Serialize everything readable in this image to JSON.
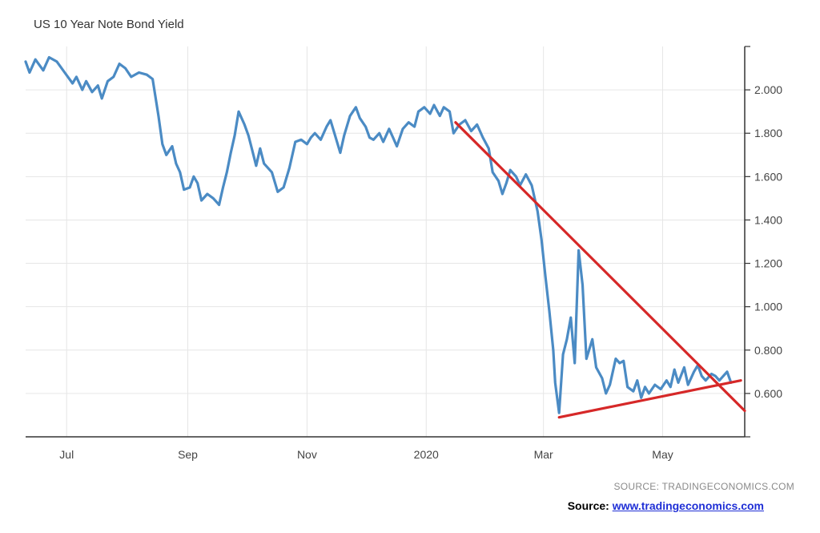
{
  "chart_data": {
    "type": "line",
    "title": "US 10 Year Note Bond Yield",
    "xlabel": "",
    "ylabel": "",
    "x_range": [
      "2019-06-10",
      "2020-06-12"
    ],
    "ylim": [
      0.4,
      2.2
    ],
    "y_ticks": [
      "0.600",
      "0.800",
      "1.000",
      "1.200",
      "1.400",
      "1.600",
      "1.800",
      "2.000"
    ],
    "x_ticks": [
      {
        "label": "Jul",
        "date": "2019-07-01"
      },
      {
        "label": "Sep",
        "date": "2019-09-01"
      },
      {
        "label": "Nov",
        "date": "2019-11-01"
      },
      {
        "label": "2020",
        "date": "2020-01-01"
      },
      {
        "label": "Mar",
        "date": "2020-03-01"
      },
      {
        "label": "May",
        "date": "2020-05-01"
      }
    ],
    "grid": true,
    "line_color": "#4b8bc4",
    "series": [
      {
        "points": [
          [
            "2019-06-10",
            2.13
          ],
          [
            "2019-06-12",
            2.08
          ],
          [
            "2019-06-15",
            2.14
          ],
          [
            "2019-06-19",
            2.09
          ],
          [
            "2019-06-22",
            2.15
          ],
          [
            "2019-06-26",
            2.13
          ],
          [
            "2019-06-30",
            2.08
          ],
          [
            "2019-07-04",
            2.03
          ],
          [
            "2019-07-06",
            2.06
          ],
          [
            "2019-07-09",
            2.0
          ],
          [
            "2019-07-11",
            2.04
          ],
          [
            "2019-07-14",
            1.99
          ],
          [
            "2019-07-17",
            2.02
          ],
          [
            "2019-07-19",
            1.96
          ],
          [
            "2019-07-22",
            2.04
          ],
          [
            "2019-07-25",
            2.06
          ],
          [
            "2019-07-28",
            2.12
          ],
          [
            "2019-07-31",
            2.1
          ],
          [
            "2019-08-03",
            2.06
          ],
          [
            "2019-08-07",
            2.08
          ],
          [
            "2019-08-11",
            2.07
          ],
          [
            "2019-08-14",
            2.05
          ],
          [
            "2019-08-17",
            1.88
          ],
          [
            "2019-08-19",
            1.75
          ],
          [
            "2019-08-21",
            1.7
          ],
          [
            "2019-08-24",
            1.74
          ],
          [
            "2019-08-26",
            1.66
          ],
          [
            "2019-08-28",
            1.62
          ],
          [
            "2019-08-30",
            1.54
          ],
          [
            "2019-09-02",
            1.55
          ],
          [
            "2019-09-04",
            1.6
          ],
          [
            "2019-09-06",
            1.57
          ],
          [
            "2019-09-08",
            1.49
          ],
          [
            "2019-09-11",
            1.52
          ],
          [
            "2019-09-14",
            1.5
          ],
          [
            "2019-09-17",
            1.47
          ],
          [
            "2019-09-19",
            1.55
          ],
          [
            "2019-09-21",
            1.62
          ],
          [
            "2019-09-23",
            1.71
          ],
          [
            "2019-09-25",
            1.79
          ],
          [
            "2019-09-27",
            1.9
          ],
          [
            "2019-09-30",
            1.84
          ],
          [
            "2019-10-02",
            1.79
          ],
          [
            "2019-10-04",
            1.72
          ],
          [
            "2019-10-06",
            1.65
          ],
          [
            "2019-10-08",
            1.73
          ],
          [
            "2019-10-10",
            1.66
          ],
          [
            "2019-10-14",
            1.62
          ],
          [
            "2019-10-17",
            1.53
          ],
          [
            "2019-10-20",
            1.55
          ],
          [
            "2019-10-23",
            1.64
          ],
          [
            "2019-10-26",
            1.76
          ],
          [
            "2019-10-29",
            1.77
          ],
          [
            "2019-11-01",
            1.75
          ],
          [
            "2019-11-03",
            1.78
          ],
          [
            "2019-11-05",
            1.8
          ],
          [
            "2019-11-08",
            1.77
          ],
          [
            "2019-11-11",
            1.83
          ],
          [
            "2019-11-13",
            1.86
          ],
          [
            "2019-11-15",
            1.8
          ],
          [
            "2019-11-18",
            1.71
          ],
          [
            "2019-11-20",
            1.79
          ],
          [
            "2019-11-23",
            1.88
          ],
          [
            "2019-11-26",
            1.92
          ],
          [
            "2019-11-28",
            1.87
          ],
          [
            "2019-12-01",
            1.83
          ],
          [
            "2019-12-03",
            1.78
          ],
          [
            "2019-12-05",
            1.77
          ],
          [
            "2019-12-08",
            1.8
          ],
          [
            "2019-12-10",
            1.76
          ],
          [
            "2019-12-13",
            1.82
          ],
          [
            "2019-12-15",
            1.78
          ],
          [
            "2019-12-17",
            1.74
          ],
          [
            "2019-12-20",
            1.82
          ],
          [
            "2019-12-23",
            1.85
          ],
          [
            "2019-12-26",
            1.83
          ],
          [
            "2019-12-28",
            1.9
          ],
          [
            "2019-12-31",
            1.92
          ],
          [
            "2020-01-03",
            1.89
          ],
          [
            "2020-01-05",
            1.93
          ],
          [
            "2020-01-08",
            1.88
          ],
          [
            "2020-01-10",
            1.92
          ],
          [
            "2020-01-13",
            1.9
          ],
          [
            "2020-01-15",
            1.8
          ],
          [
            "2020-01-18",
            1.84
          ],
          [
            "2020-01-21",
            1.86
          ],
          [
            "2020-01-24",
            1.81
          ],
          [
            "2020-01-27",
            1.84
          ],
          [
            "2020-01-30",
            1.78
          ],
          [
            "2020-02-02",
            1.73
          ],
          [
            "2020-02-04",
            1.62
          ],
          [
            "2020-02-07",
            1.58
          ],
          [
            "2020-02-09",
            1.52
          ],
          [
            "2020-02-11",
            1.57
          ],
          [
            "2020-02-13",
            1.63
          ],
          [
            "2020-02-16",
            1.6
          ],
          [
            "2020-02-18",
            1.56
          ],
          [
            "2020-02-21",
            1.61
          ],
          [
            "2020-02-24",
            1.56
          ],
          [
            "2020-02-27",
            1.44
          ],
          [
            "2020-02-29",
            1.31
          ],
          [
            "2020-03-02",
            1.14
          ],
          [
            "2020-03-04",
            0.98
          ],
          [
            "2020-03-06",
            0.8
          ],
          [
            "2020-03-07",
            0.65
          ],
          [
            "2020-03-09",
            0.51
          ],
          [
            "2020-03-11",
            0.78
          ],
          [
            "2020-03-13",
            0.85
          ],
          [
            "2020-03-15",
            0.95
          ],
          [
            "2020-03-17",
            0.74
          ],
          [
            "2020-03-19",
            1.26
          ],
          [
            "2020-03-21",
            1.1
          ],
          [
            "2020-03-23",
            0.76
          ],
          [
            "2020-03-26",
            0.85
          ],
          [
            "2020-03-28",
            0.72
          ],
          [
            "2020-03-31",
            0.67
          ],
          [
            "2020-04-02",
            0.6
          ],
          [
            "2020-04-04",
            0.64
          ],
          [
            "2020-04-07",
            0.76
          ],
          [
            "2020-04-09",
            0.74
          ],
          [
            "2020-04-11",
            0.75
          ],
          [
            "2020-04-13",
            0.63
          ],
          [
            "2020-04-16",
            0.61
          ],
          [
            "2020-04-18",
            0.66
          ],
          [
            "2020-04-20",
            0.58
          ],
          [
            "2020-04-22",
            0.63
          ],
          [
            "2020-04-24",
            0.6
          ],
          [
            "2020-04-27",
            0.64
          ],
          [
            "2020-04-30",
            0.62
          ],
          [
            "2020-05-03",
            0.66
          ],
          [
            "2020-05-05",
            0.63
          ],
          [
            "2020-05-07",
            0.71
          ],
          [
            "2020-05-09",
            0.65
          ],
          [
            "2020-05-12",
            0.72
          ],
          [
            "2020-05-14",
            0.64
          ],
          [
            "2020-05-17",
            0.7
          ],
          [
            "2020-05-19",
            0.73
          ],
          [
            "2020-05-21",
            0.68
          ],
          [
            "2020-05-23",
            0.66
          ],
          [
            "2020-05-26",
            0.69
          ],
          [
            "2020-05-28",
            0.68
          ],
          [
            "2020-05-30",
            0.66
          ],
          [
            "2020-06-01",
            0.68
          ],
          [
            "2020-06-03",
            0.7
          ],
          [
            "2020-06-05",
            0.65
          ]
        ]
      }
    ],
    "annotations": [
      {
        "type": "trendline",
        "color": "#d62828",
        "from": [
          "2020-01-16",
          1.85
        ],
        "to": [
          "2020-06-12",
          0.52
        ]
      },
      {
        "type": "trendline",
        "color": "#d62828",
        "from": [
          "2020-03-09",
          0.49
        ],
        "to": [
          "2020-06-10",
          0.66
        ]
      }
    ]
  },
  "footer": {
    "source_note": "SOURCE: TRADINGECONOMICS.COM",
    "source_label": "Source: ",
    "source_link": "www.tradingeconomics.com"
  }
}
